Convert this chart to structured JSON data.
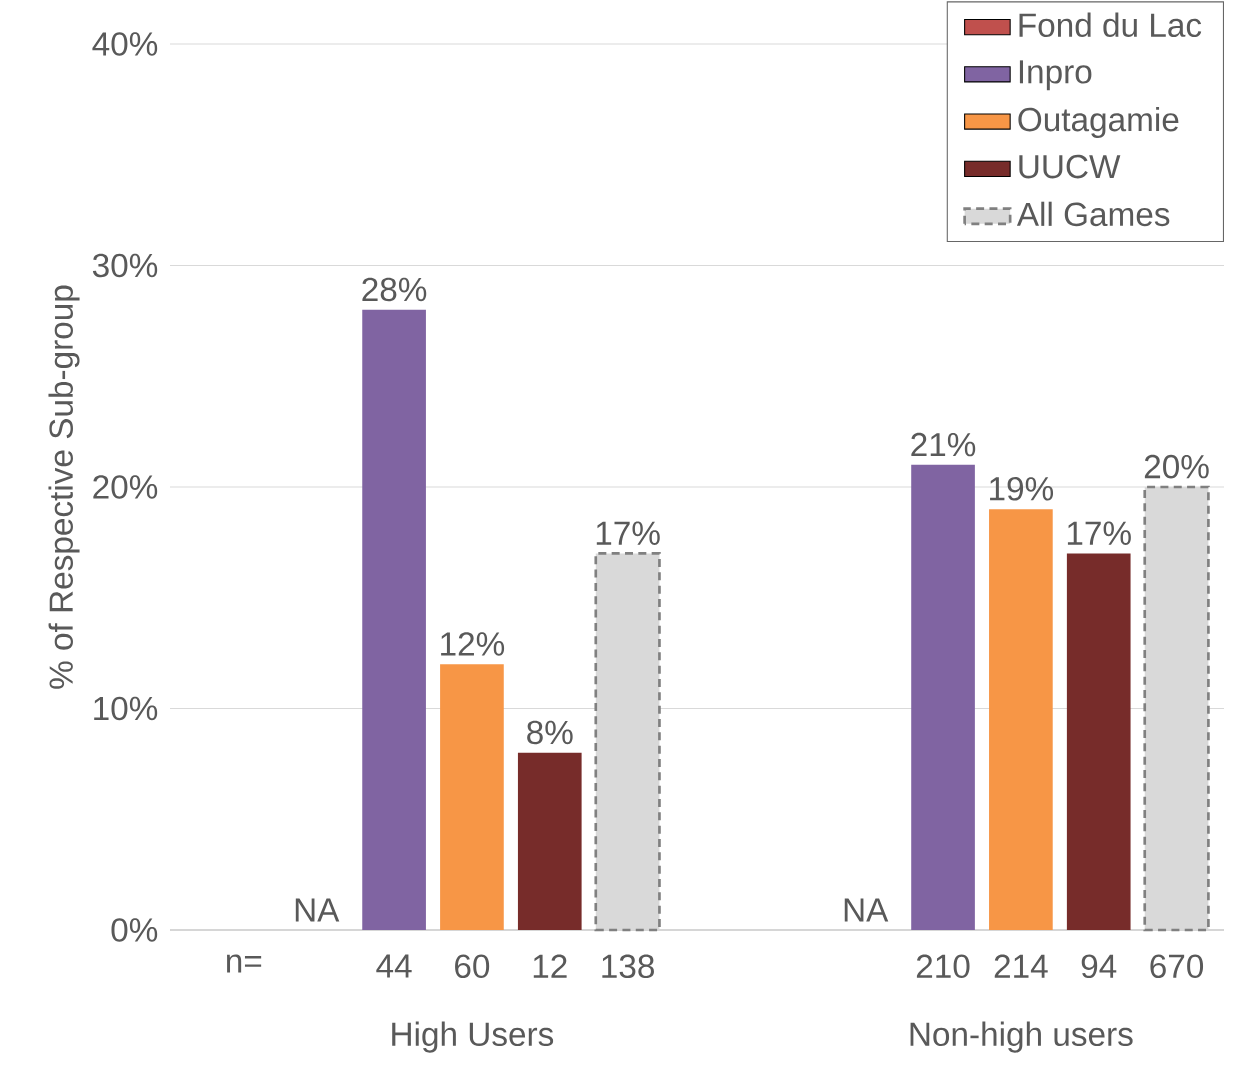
{
  "chart_data": {
    "type": "bar",
    "ylabel": "% of Respective Sub-group",
    "categories": [
      "High Users",
      "Non-high users"
    ],
    "series": [
      {
        "name": "Fond du Lac",
        "color": "#c0504d",
        "values": [
          null,
          null
        ],
        "value_labels": [
          "NA",
          "NA"
        ]
      },
      {
        "name": "Inpro",
        "color": "#8064a2",
        "values": [
          28,
          21
        ],
        "value_labels": [
          "28%",
          "21%"
        ]
      },
      {
        "name": "Outagamie",
        "color": "#f79646",
        "values": [
          12,
          19
        ],
        "value_labels": [
          "12%",
          "19%"
        ]
      },
      {
        "name": "UUCW",
        "color": "#772c2a",
        "values": [
          8,
          17
        ],
        "value_labels": [
          "8%",
          "17%"
        ]
      },
      {
        "name": "All Games",
        "color": "#d9d9d9",
        "line_style": "dashed",
        "values": [
          17,
          20
        ],
        "value_labels": [
          "17%",
          "20%"
        ]
      }
    ],
    "ylim": [
      0,
      40
    ],
    "yticks": [
      {
        "value": 0,
        "label": "0%"
      },
      {
        "value": 10,
        "label": "10%"
      },
      {
        "value": 20,
        "label": "20%"
      },
      {
        "value": 30,
        "label": "30%"
      },
      {
        "value": 40,
        "label": "40%"
      }
    ],
    "grid": "y",
    "legend": "top right",
    "annotations": [
      "n=",
      "44",
      "60",
      "12",
      "138",
      "210",
      "214",
      "94",
      "670"
    ]
  }
}
